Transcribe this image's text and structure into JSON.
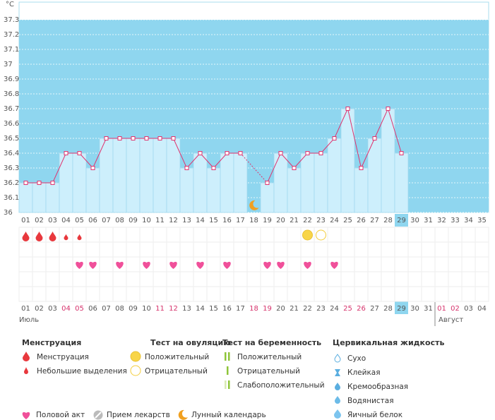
{
  "chart_data": {
    "type": "line",
    "y_label": "°C",
    "categories": [
      "01",
      "02",
      "03",
      "04",
      "05",
      "06",
      "07",
      "08",
      "09",
      "10",
      "11",
      "12",
      "13",
      "14",
      "15",
      "16",
      "17",
      "18",
      "19",
      "20",
      "21",
      "22",
      "23",
      "24",
      "25",
      "26",
      "27",
      "28",
      "29",
      "30",
      "31",
      "32",
      "33",
      "34",
      "35"
    ],
    "series": [
      {
        "color": "#e0336e",
        "values": [
          36.2,
          36.2,
          36.2,
          36.4,
          36.4,
          36.3,
          36.5,
          36.5,
          36.5,
          36.5,
          36.5,
          36.5,
          36.3,
          36.4,
          36.3,
          36.4,
          36.4,
          null,
          36.2,
          36.4,
          36.3,
          36.4,
          36.4,
          36.5,
          36.7,
          36.3,
          36.5,
          36.7,
          36.4,
          null,
          null,
          null,
          null,
          null,
          null
        ]
      }
    ],
    "ylim": [
      36,
      37.3
    ],
    "yticks": [
      36,
      36.1,
      36.2,
      36.3,
      36.4,
      36.5,
      36.6,
      36.7,
      36.8,
      36.9,
      37,
      37.1,
      37.2,
      37.3
    ],
    "grid": true,
    "background_color": "#8fd6ef",
    "column_color": "#cdeffc",
    "current_day": 29,
    "dates": [
      "01",
      "02",
      "03",
      "04",
      "05",
      "06",
      "07",
      "08",
      "09",
      "10",
      "11",
      "12",
      "13",
      "14",
      "15",
      "16",
      "17",
      "18",
      "19",
      "20",
      "21",
      "22",
      "23",
      "24",
      "25",
      "26",
      "27",
      "28",
      "29",
      "30",
      "31",
      "01",
      "02",
      "03",
      "04"
    ],
    "weekends": [
      false,
      false,
      false,
      true,
      true,
      false,
      false,
      false,
      false,
      false,
      true,
      true,
      false,
      false,
      false,
      false,
      false,
      true,
      true,
      false,
      false,
      false,
      false,
      false,
      true,
      true,
      false,
      false,
      false,
      false,
      false,
      true,
      true,
      false,
      false
    ],
    "weekend_color": "#d6336c",
    "months": [
      "Июль",
      "Август"
    ],
    "events": {
      "menstruation": [
        1,
        2,
        3
      ],
      "spotting": [
        4,
        5
      ],
      "ovulation_positive": [
        22
      ],
      "ovulation_negative": [
        23
      ],
      "intercourse": [
        5,
        6,
        8,
        10,
        12,
        14,
        16,
        19,
        20,
        22,
        24
      ],
      "moon": [
        18
      ]
    }
  },
  "legend": {
    "menstruation": {
      "title": "Менструация",
      "items": [
        "Менструация",
        "Небольшие выделения"
      ]
    },
    "ovulation_test": {
      "title": "Тест на овуляцию",
      "items": [
        "Положительный",
        "Отрицательный"
      ]
    },
    "pregnancy_test": {
      "title": "Тест на беременность",
      "items": [
        "Положительный",
        "Отрицательный",
        "Слабоположительный"
      ]
    },
    "cervical_fluid": {
      "title": "Цервикальная жидкость",
      "items": [
        "Сухо",
        "Клейкая",
        "Кремообразная",
        "Водянистая",
        "Яичный белок"
      ]
    },
    "other": [
      "Половой акт",
      "Прием лекарств",
      "Лунный календарь"
    ]
  }
}
